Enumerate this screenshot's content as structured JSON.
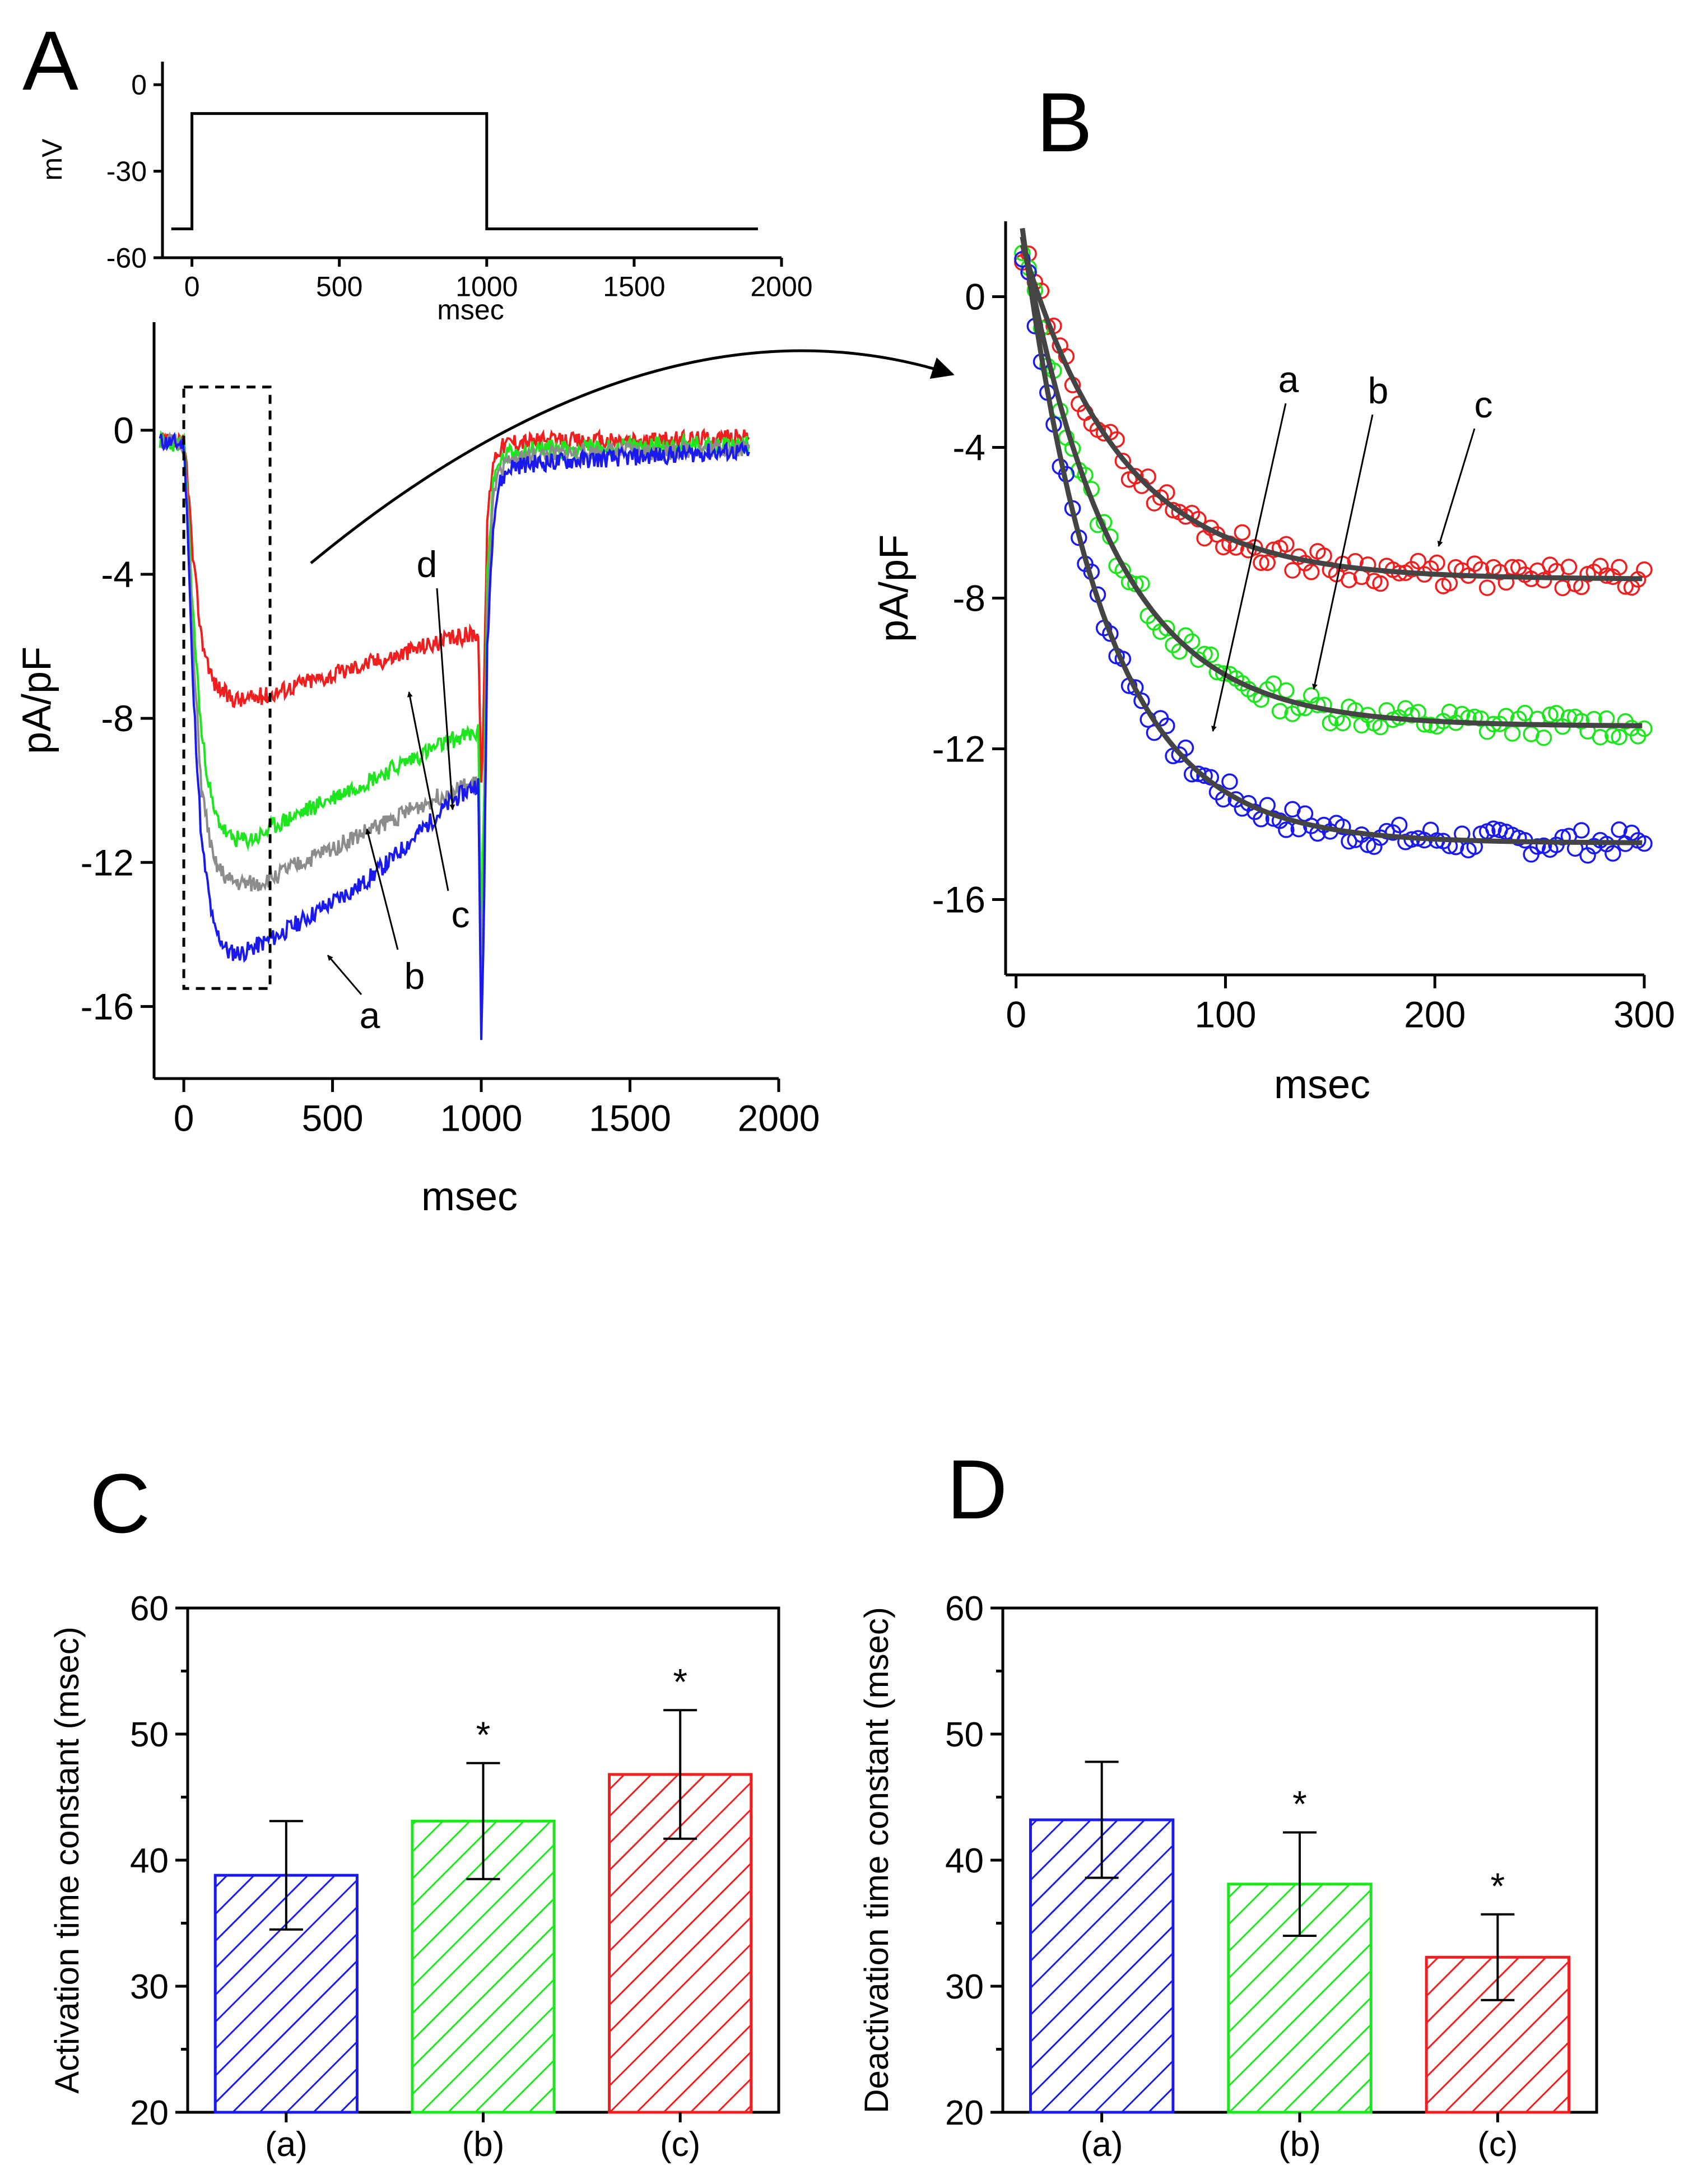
{
  "panels": {
    "A": "A",
    "B": "B",
    "C": "C",
    "D": "D"
  },
  "colors": {
    "a": "#1a1af0",
    "b": "#1ee61e",
    "c": "#f01e1e",
    "d": "#8c8c8c",
    "fit": "#444444"
  },
  "chart_data": [
    {
      "id": "A-inset",
      "type": "line",
      "title": "",
      "xlabel": "msec",
      "ylabel": "mV",
      "xlim": [
        -100,
        2000
      ],
      "ylim": [
        -60,
        8
      ],
      "xticks": [
        0,
        500,
        1000,
        1500,
        2000
      ],
      "xtick_labels": [
        "0",
        "500",
        "1000",
        "1500",
        "2000"
      ],
      "yticks": [
        0,
        -30,
        -60
      ],
      "ytick_labels": [
        "0",
        "-30",
        "-60"
      ],
      "series": [
        {
          "name": "voltage protocol",
          "x": [
            -70,
            0,
            0,
            1000,
            1000,
            1920
          ],
          "y": [
            -50,
            -50,
            -10,
            -10,
            -50,
            -50
          ]
        }
      ]
    },
    {
      "id": "A-main",
      "type": "line",
      "title": "",
      "xlabel": "msec",
      "ylabel": "pA/pF",
      "xlim": [
        -100,
        2000
      ],
      "ylim": [
        -18,
        3
      ],
      "xticks": [
        0,
        500,
        1000,
        1500,
        2000
      ],
      "xtick_labels": [
        "0",
        "500",
        "1000",
        "1500",
        "2000"
      ],
      "yticks": [
        0,
        -4,
        -8,
        -12,
        -16
      ],
      "ytick_labels": [
        "0",
        "-4",
        "-8",
        "-12",
        "-16"
      ],
      "annotations": [
        "a",
        "b",
        "c",
        "d"
      ],
      "series": [
        {
          "name": "a",
          "x": [
            -80,
            0,
            10,
            30,
            60,
            100,
            150,
            200,
            250,
            300,
            400,
            500,
            600,
            700,
            800,
            900,
            990,
            1000,
            1010,
            1020,
            1040,
            1060,
            1100,
            1200,
            1400,
            1600,
            1800,
            1900
          ],
          "y": [
            -0.3,
            -0.4,
            -2.0,
            -7.0,
            -11.5,
            -13.8,
            -14.5,
            -14.5,
            -14.3,
            -14.1,
            -13.6,
            -13.1,
            -12.6,
            -11.9,
            -11.1,
            -10.3,
            -9.8,
            -17.0,
            -13.0,
            -6.0,
            -2.5,
            -1.5,
            -1.0,
            -0.9,
            -0.8,
            -0.7,
            -0.6,
            -0.6
          ]
        },
        {
          "name": "b",
          "x": [
            -80,
            0,
            10,
            30,
            60,
            100,
            150,
            200,
            250,
            300,
            400,
            500,
            600,
            700,
            800,
            900,
            990,
            1000,
            1010,
            1020,
            1040,
            1060,
            1100,
            1200,
            1400,
            1600,
            1800,
            1900
          ],
          "y": [
            -0.3,
            -0.4,
            -1.5,
            -5.0,
            -8.5,
            -10.6,
            -11.3,
            -11.4,
            -11.3,
            -11.0,
            -10.6,
            -10.2,
            -9.8,
            -9.4,
            -9.0,
            -8.6,
            -8.4,
            -14.0,
            -10.0,
            -4.0,
            -1.5,
            -0.9,
            -0.6,
            -0.5,
            -0.5,
            -0.4,
            -0.4,
            -0.4
          ]
        },
        {
          "name": "c",
          "x": [
            -80,
            0,
            10,
            30,
            60,
            100,
            150,
            200,
            250,
            300,
            400,
            500,
            600,
            700,
            800,
            900,
            990,
            1000,
            1010,
            1020,
            1040,
            1060,
            1100,
            1200,
            1400,
            1600,
            1800,
            1900
          ],
          "y": [
            -0.3,
            -0.4,
            -1.0,
            -3.5,
            -5.8,
            -7.0,
            -7.4,
            -7.5,
            -7.4,
            -7.3,
            -7.0,
            -6.8,
            -6.5,
            -6.3,
            -6.0,
            -5.8,
            -5.6,
            -10.0,
            -7.0,
            -2.5,
            -0.8,
            -0.5,
            -0.3,
            -0.3,
            -0.3,
            -0.3,
            -0.2,
            -0.2
          ]
        },
        {
          "name": "d",
          "x": [
            -80,
            0,
            10,
            30,
            60,
            100,
            150,
            200,
            250,
            300,
            400,
            500,
            600,
            700,
            800,
            900,
            990,
            1000,
            1010,
            1020,
            1040,
            1060,
            1100,
            1200,
            1400,
            1600,
            1800,
            1900
          ],
          "y": [
            -0.3,
            -0.4,
            -1.8,
            -6.0,
            -10.0,
            -12.0,
            -12.5,
            -12.6,
            -12.6,
            -12.4,
            -12.0,
            -11.6,
            -11.2,
            -10.8,
            -10.4,
            -10.0,
            -9.8,
            -16.0,
            -12.0,
            -5.0,
            -2.0,
            -1.2,
            -0.8,
            -0.7,
            -0.6,
            -0.6,
            -0.5,
            -0.5
          ]
        }
      ]
    },
    {
      "id": "B",
      "type": "scatter",
      "title": "",
      "xlabel": "msec",
      "ylabel": "pA/pF",
      "xlim": [
        -5,
        300
      ],
      "ylim": [
        -18,
        2
      ],
      "xticks": [
        0,
        100,
        200,
        300
      ],
      "xtick_labels": [
        "0",
        "100",
        "200",
        "300"
      ],
      "yticks": [
        0,
        -4,
        -8,
        -12,
        -16
      ],
      "ytick_labels": [
        "0",
        "-4",
        "-8",
        "-12",
        "-16"
      ],
      "annotations": [
        "a",
        "b",
        "c"
      ],
      "series": [
        {
          "name": "a",
          "amplitude": -14.5,
          "tau": 39,
          "x0": 5,
          "y0": 1.0
        },
        {
          "name": "b",
          "amplitude": -11.4,
          "tau": 43,
          "x0": 5,
          "y0": 1.0
        },
        {
          "name": "c",
          "amplitude": -7.5,
          "tau": 47,
          "x0": 5,
          "y0": 1.0
        }
      ]
    },
    {
      "id": "C",
      "type": "bar",
      "title": "",
      "xlabel": "",
      "ylabel": "Activation time constant (msec)",
      "ylim": [
        20,
        60
      ],
      "yticks": [
        20,
        30,
        40,
        50,
        60
      ],
      "ytick_labels": [
        "20",
        "30",
        "40",
        "50",
        "60"
      ],
      "categories": [
        "(a)",
        "(b)",
        "(c)"
      ],
      "values": [
        38.8,
        43.1,
        46.8
      ],
      "errors": [
        4.3,
        4.6,
        5.1
      ],
      "significance": [
        "",
        "*",
        "*"
      ]
    },
    {
      "id": "D",
      "type": "bar",
      "title": "",
      "xlabel": "",
      "ylabel": "Deactivation time constant (msec)",
      "ylim": [
        20,
        60
      ],
      "yticks": [
        20,
        30,
        40,
        50,
        60
      ],
      "ytick_labels": [
        "20",
        "30",
        "40",
        "50",
        "60"
      ],
      "categories": [
        "(a)",
        "(b)",
        "(c)"
      ],
      "values": [
        43.2,
        38.1,
        32.3
      ],
      "errors": [
        4.6,
        4.1,
        3.4
      ],
      "significance": [
        "",
        "*",
        "*"
      ]
    }
  ]
}
